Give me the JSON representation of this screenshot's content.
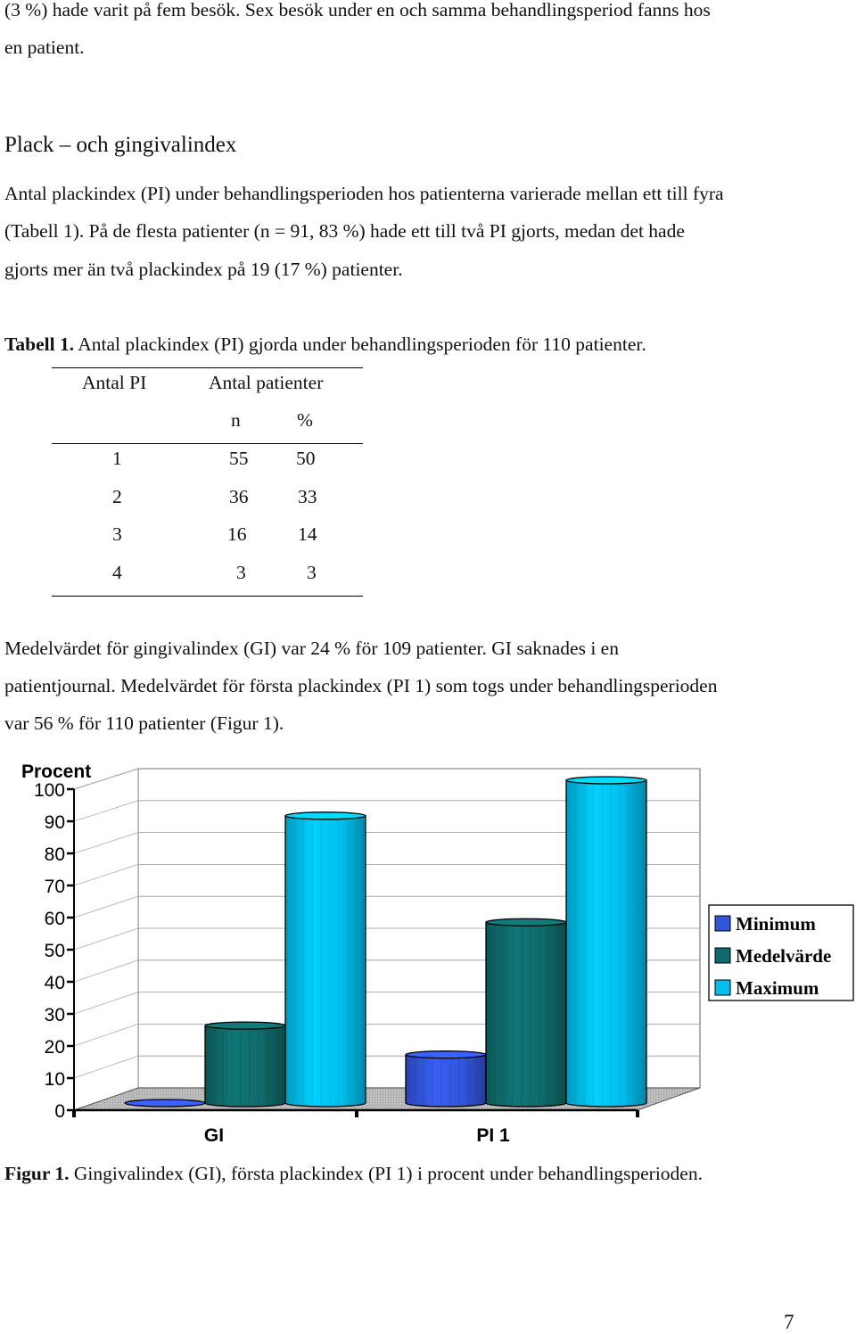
{
  "paragraph_intro": [
    "(3 %) hade varit på fem besök. Sex besök under en och samma behandlingsperiod fanns hos",
    "en patient."
  ],
  "section_heading": "Plack – och gingivalindex",
  "paragraph_pi": [
    "Antal plackindex (PI) under behandlingsperioden hos patienterna varierade mellan ett till fyra",
    "(Tabell 1). På de flesta patienter (n = 91, 83 %) hade ett till två PI gjorts, medan det hade",
    "gjorts mer än två plackindex på 19 (17 %) patienter."
  ],
  "table1": {
    "caption_label": "Tabell 1.",
    "caption_text": " Antal plackindex (PI) gjorda under behandlingsperioden för 110 patienter.",
    "col1_header": "Antal PI",
    "col2_header": "Antal patienter",
    "sub_n": "n",
    "sub_pct": "%",
    "rows": [
      {
        "pi": "1",
        "n": "55",
        "pct": "50"
      },
      {
        "pi": "2",
        "n": "36",
        "pct": "33"
      },
      {
        "pi": "3",
        "n": "16",
        "pct": "14"
      },
      {
        "pi": "4",
        "n": "3",
        "pct": "3"
      }
    ]
  },
  "paragraph_gi": [
    "Medelvärdet för gingivalindex (GI) var 24 % för 109 patienter. GI saknades i en",
    "patientjournal. Medelvärdet för första plackindex (PI 1) som togs under behandlingsperioden",
    "var 56 % för 110 patienter (Figur 1)."
  ],
  "chart_data": {
    "type": "bar",
    "ylabel": "Procent",
    "ylim": [
      0,
      100
    ],
    "yticks": [
      "0",
      "10",
      "20",
      "30",
      "40",
      "50",
      "60",
      "70",
      "80",
      "90",
      "100"
    ],
    "categories": [
      "GI",
      "PI 1"
    ],
    "series": [
      {
        "name": "Minimum",
        "values": [
          0,
          15
        ],
        "color": "#3355dd"
      },
      {
        "name": "Medelvärde",
        "values": [
          24,
          56
        ],
        "color": "#0f6b6b"
      },
      {
        "name": "Maximum",
        "values": [
          89,
          100
        ],
        "color": "#00bfee"
      }
    ],
    "legend_position": "right"
  },
  "figure1": {
    "caption_label": "Figur 1.",
    "caption_text": " Gingivalindex (GI), första plackindex (PI 1) i procent under behandlingsperioden."
  },
  "page_number": "7"
}
